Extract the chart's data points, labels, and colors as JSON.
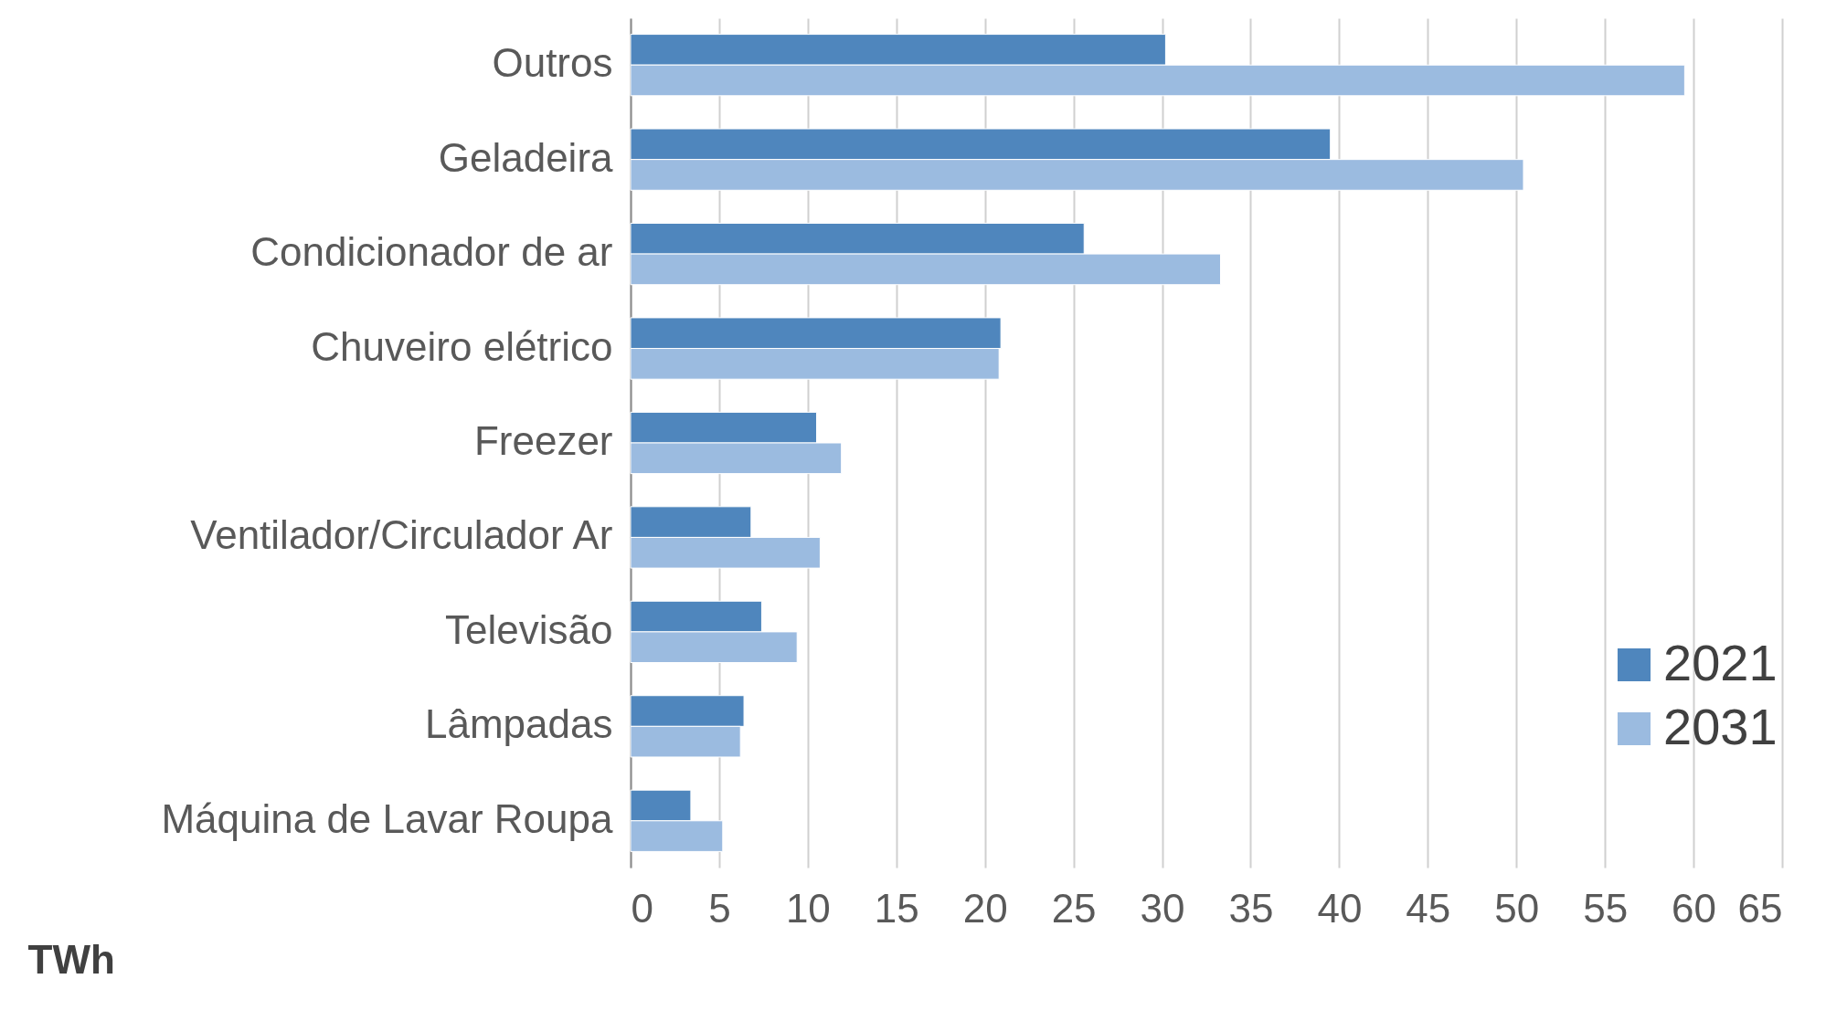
{
  "chart_data": {
    "type": "bar",
    "orientation": "horizontal",
    "xlabel": "TWh",
    "categories": [
      "Outros",
      "Geladeira",
      "Condicionador de ar",
      "Chuveiro elétrico",
      "Freezer",
      "Ventilador/Circulador Ar",
      "Televisão",
      "Lâmpadas",
      "Máquina de Lavar Roupa"
    ],
    "series": [
      {
        "name": "2021",
        "color": "#4f86bd",
        "values": [
          30.2,
          39.5,
          25.6,
          20.9,
          10.5,
          6.8,
          7.4,
          6.4,
          3.4
        ]
      },
      {
        "name": "2031",
        "color": "#9bbbe0",
        "values": [
          59.5,
          50.4,
          33.3,
          20.8,
          11.9,
          10.7,
          9.4,
          6.2,
          5.2
        ]
      }
    ],
    "xlim": [
      0,
      65
    ],
    "xticks": [
      0,
      5,
      10,
      15,
      20,
      25,
      30,
      35,
      40,
      45,
      50,
      55,
      60,
      65
    ],
    "grid": "x",
    "legend": "bottom right"
  }
}
